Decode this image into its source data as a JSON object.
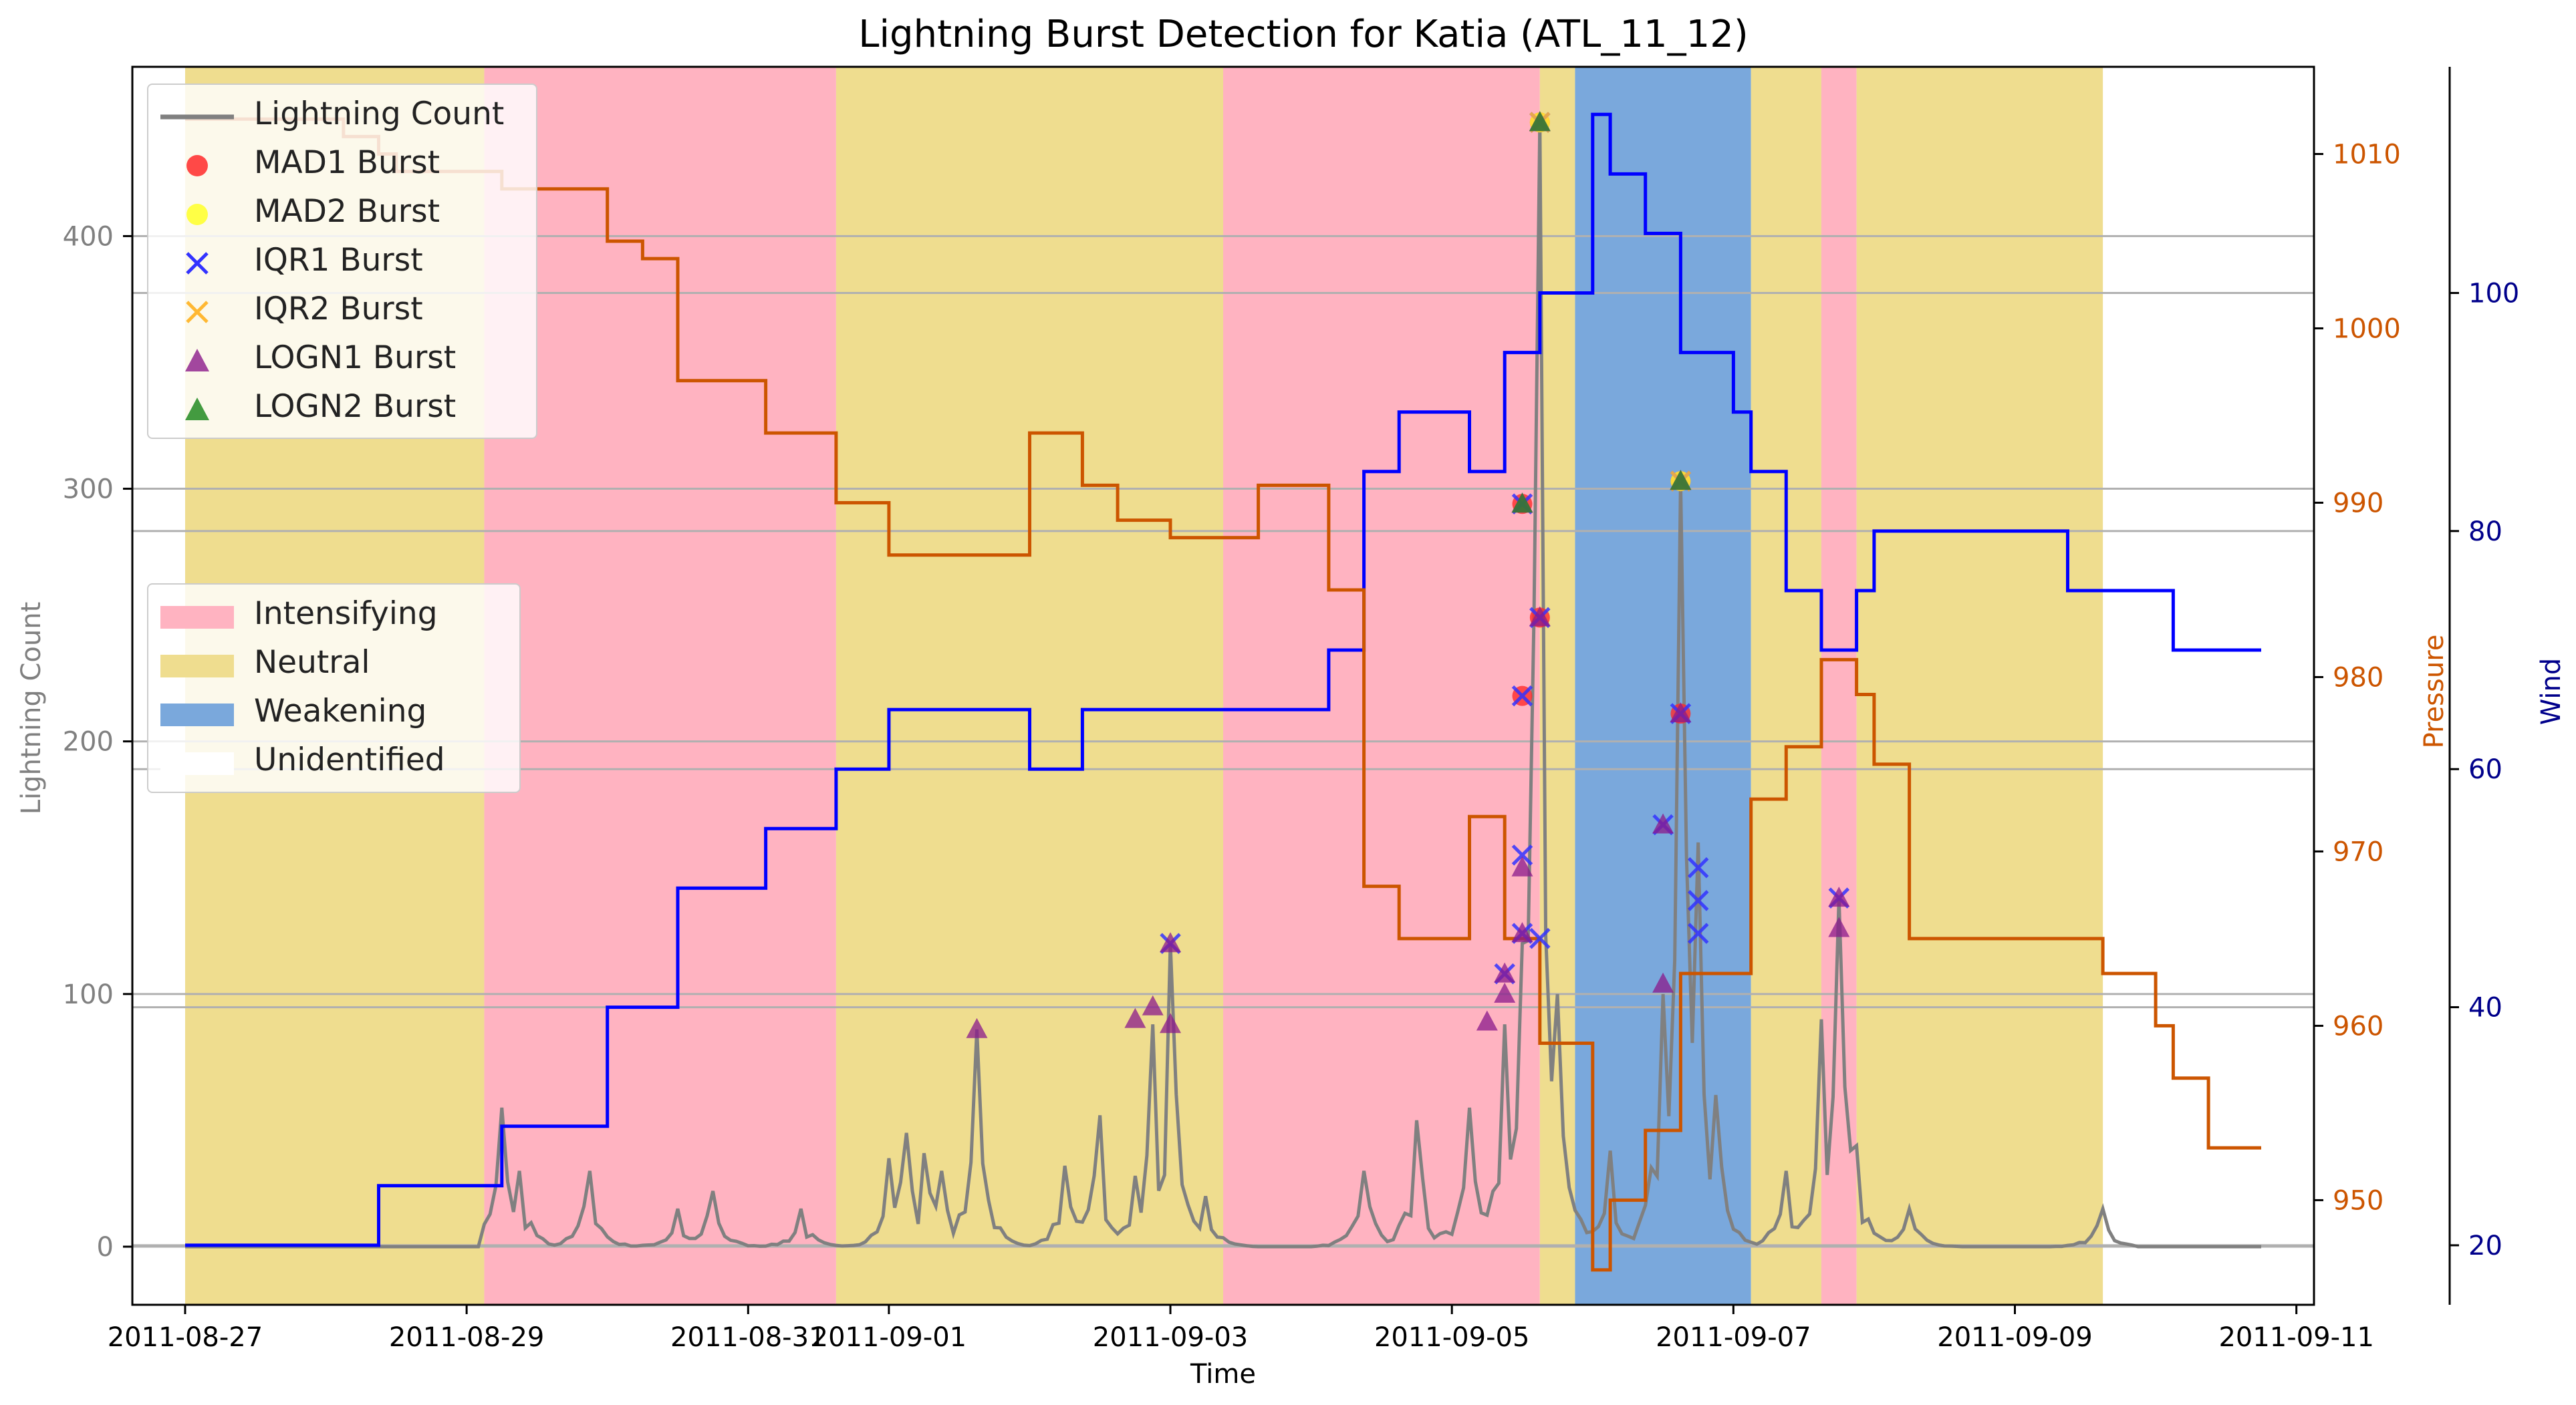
{
  "chart_data": {
    "type": "line",
    "title": "Lightning Burst Detection for Katia (ATL_11_12)",
    "xlabel": "Time",
    "ylabel_left": "Lightning Count",
    "ylabel_pressure": "Pressure",
    "ylabel_wind": "Wind",
    "xlim": [
      "2011-08-26 15:00",
      "2011-09-11 03:00"
    ],
    "ylim_left": [
      -23,
      467
    ],
    "ylim_pressure": [
      944,
      1015
    ],
    "ylim_wind": [
      15,
      119
    ],
    "x_ticks": [
      "2011-08-27",
      "2011-08-29",
      "2011-08-31",
      "2011-09-01",
      "2011-09-03",
      "2011-09-05",
      "2011-09-07",
      "2011-09-09",
      "2011-09-11"
    ],
    "x_tick_times": [
      "2011-08-27 00:00",
      "2011-08-29 00:00",
      "2011-08-31 00:00",
      "2011-09-01 00:00",
      "2011-09-03 00:00",
      "2011-09-05 00:00",
      "2011-09-07 00:00",
      "2011-09-09 00:00",
      "2011-09-11 00:00"
    ],
    "y_ticks_left": [
      0,
      100,
      200,
      300,
      400
    ],
    "y_ticks_pressure": [
      950,
      960,
      970,
      980,
      990,
      1000,
      1010
    ],
    "y_ticks_wind": [
      20,
      40,
      60,
      80,
      100
    ],
    "grid": "horizontal lines only",
    "colors": {
      "lightning": "#808080",
      "pressure": "#cc5500",
      "wind": "#0000ff",
      "wind_axis": "#00008b",
      "intensifying": "#ffb3c1",
      "neutral": "#efdd8f",
      "weakening": "#7aa8dc",
      "mad1": "#ff2a2a",
      "mad2": "#ffff33",
      "iqr1": "#3333ff",
      "iqr2": "#ffb833",
      "logn1": "#8b1a8b",
      "logn2": "#228b22"
    },
    "phases": [
      {
        "label": "Neutral",
        "start": "2011-08-27 00:00",
        "end": "2011-08-29 03:00"
      },
      {
        "label": "Intensifying",
        "start": "2011-08-29 03:00",
        "end": "2011-08-31 15:00"
      },
      {
        "label": "Neutral",
        "start": "2011-08-31 15:00",
        "end": "2011-09-03 09:00"
      },
      {
        "label": "Intensifying",
        "start": "2011-09-03 09:00",
        "end": "2011-09-05 15:00"
      },
      {
        "label": "Neutral",
        "start": "2011-09-05 15:00",
        "end": "2011-09-05 21:00"
      },
      {
        "label": "Weakening",
        "start": "2011-09-05 21:00",
        "end": "2011-09-07 03:00"
      },
      {
        "label": "Neutral",
        "start": "2011-09-07 03:00",
        "end": "2011-09-07 15:00"
      },
      {
        "label": "Intensifying",
        "start": "2011-09-07 15:00",
        "end": "2011-09-07 21:00"
      },
      {
        "label": "Neutral",
        "start": "2011-09-07 21:00",
        "end": "2011-09-09 15:00"
      }
    ],
    "pressure": [
      [
        "2011-08-27 00:00",
        1012
      ],
      [
        "2011-08-28 03:00",
        1012
      ],
      [
        "2011-08-28 03:00",
        1011
      ],
      [
        "2011-08-28 09:00",
        1011
      ],
      [
        "2011-08-28 09:00",
        1010
      ],
      [
        "2011-08-28 12:00",
        1010
      ],
      [
        "2011-08-28 12:00",
        1009
      ],
      [
        "2011-08-29 06:00",
        1009
      ],
      [
        "2011-08-29 06:00",
        1008
      ],
      [
        "2011-08-30 00:00",
        1008
      ],
      [
        "2011-08-30 00:00",
        1005
      ],
      [
        "2011-08-30 06:00",
        1005
      ],
      [
        "2011-08-30 06:00",
        1004
      ],
      [
        "2011-08-30 12:00",
        1004
      ],
      [
        "2011-08-30 12:00",
        997
      ],
      [
        "2011-08-31 03:00",
        997
      ],
      [
        "2011-08-31 03:00",
        994
      ],
      [
        "2011-08-31 15:00",
        994
      ],
      [
        "2011-08-31 15:00",
        990
      ],
      [
        "2011-09-01 00:00",
        990
      ],
      [
        "2011-09-01 00:00",
        987
      ],
      [
        "2011-09-02 00:00",
        987
      ],
      [
        "2011-09-02 00:00",
        994
      ],
      [
        "2011-09-02 09:00",
        994
      ],
      [
        "2011-09-02 09:00",
        991
      ],
      [
        "2011-09-02 15:00",
        991
      ],
      [
        "2011-09-02 15:00",
        989
      ],
      [
        "2011-09-03 00:00",
        989
      ],
      [
        "2011-09-03 00:00",
        988
      ],
      [
        "2011-09-03 15:00",
        988
      ],
      [
        "2011-09-03 15:00",
        991
      ],
      [
        "2011-09-04 03:00",
        991
      ],
      [
        "2011-09-04 03:00",
        985
      ],
      [
        "2011-09-04 09:00",
        985
      ],
      [
        "2011-09-04 09:00",
        968
      ],
      [
        "2011-09-04 15:00",
        968
      ],
      [
        "2011-09-04 15:00",
        965
      ],
      [
        "2011-09-05 03:00",
        965
      ],
      [
        "2011-09-05 03:00",
        972
      ],
      [
        "2011-09-05 09:00",
        972
      ],
      [
        "2011-09-05 09:00",
        965
      ],
      [
        "2011-09-05 15:00",
        965
      ],
      [
        "2011-09-05 15:00",
        959
      ],
      [
        "2011-09-06 00:00",
        959
      ],
      [
        "2011-09-06 00:00",
        946
      ],
      [
        "2011-09-06 03:00",
        946
      ],
      [
        "2011-09-06 03:00",
        950
      ],
      [
        "2011-09-06 09:00",
        950
      ],
      [
        "2011-09-06 09:00",
        954
      ],
      [
        "2011-09-06 15:00",
        954
      ],
      [
        "2011-09-06 15:00",
        963
      ],
      [
        "2011-09-07 03:00",
        963
      ],
      [
        "2011-09-07 03:00",
        973
      ],
      [
        "2011-09-07 09:00",
        973
      ],
      [
        "2011-09-07 09:00",
        976
      ],
      [
        "2011-09-07 15:00",
        976
      ],
      [
        "2011-09-07 15:00",
        981
      ],
      [
        "2011-09-07 21:00",
        981
      ],
      [
        "2011-09-07 21:00",
        979
      ],
      [
        "2011-09-08 00:00",
        979
      ],
      [
        "2011-09-08 00:00",
        975
      ],
      [
        "2011-09-08 06:00",
        975
      ],
      [
        "2011-09-08 06:00",
        965
      ],
      [
        "2011-09-09 15:00",
        965
      ],
      [
        "2011-09-09 15:00",
        963
      ],
      [
        "2011-09-10 00:00",
        963
      ],
      [
        "2011-09-10 00:00",
        960
      ],
      [
        "2011-09-10 03:00",
        960
      ],
      [
        "2011-09-10 03:00",
        957
      ],
      [
        "2011-09-10 09:00",
        957
      ],
      [
        "2011-09-10 09:00",
        953
      ],
      [
        "2011-09-10 18:00",
        953
      ]
    ],
    "wind": [
      [
        "2011-08-27 00:00",
        20
      ],
      [
        "2011-08-28 09:00",
        20
      ],
      [
        "2011-08-28 09:00",
        25
      ],
      [
        "2011-08-29 06:00",
        25
      ],
      [
        "2011-08-29 06:00",
        30
      ],
      [
        "2011-08-30 00:00",
        30
      ],
      [
        "2011-08-30 00:00",
        40
      ],
      [
        "2011-08-30 12:00",
        40
      ],
      [
        "2011-08-30 12:00",
        50
      ],
      [
        "2011-08-31 03:00",
        50
      ],
      [
        "2011-08-31 03:00",
        55
      ],
      [
        "2011-08-31 15:00",
        55
      ],
      [
        "2011-08-31 15:00",
        60
      ],
      [
        "2011-09-01 00:00",
        60
      ],
      [
        "2011-09-01 00:00",
        65
      ],
      [
        "2011-09-02 00:00",
        65
      ],
      [
        "2011-09-02 00:00",
        60
      ],
      [
        "2011-09-02 09:00",
        60
      ],
      [
        "2011-09-02 09:00",
        65
      ],
      [
        "2011-09-04 03:00",
        65
      ],
      [
        "2011-09-04 03:00",
        70
      ],
      [
        "2011-09-04 09:00",
        70
      ],
      [
        "2011-09-04 09:00",
        85
      ],
      [
        "2011-09-04 15:00",
        85
      ],
      [
        "2011-09-04 15:00",
        90
      ],
      [
        "2011-09-05 03:00",
        90
      ],
      [
        "2011-09-05 03:00",
        85
      ],
      [
        "2011-09-05 09:00",
        85
      ],
      [
        "2011-09-05 09:00",
        95
      ],
      [
        "2011-09-05 15:00",
        95
      ],
      [
        "2011-09-05 15:00",
        100
      ],
      [
        "2011-09-06 00:00",
        100
      ],
      [
        "2011-09-06 00:00",
        115
      ],
      [
        "2011-09-06 03:00",
        115
      ],
      [
        "2011-09-06 03:00",
        110
      ],
      [
        "2011-09-06 09:00",
        110
      ],
      [
        "2011-09-06 09:00",
        105
      ],
      [
        "2011-09-06 15:00",
        105
      ],
      [
        "2011-09-06 15:00",
        95
      ],
      [
        "2011-09-07 00:00",
        95
      ],
      [
        "2011-09-07 00:00",
        90
      ],
      [
        "2011-09-07 03:00",
        90
      ],
      [
        "2011-09-07 03:00",
        85
      ],
      [
        "2011-09-07 09:00",
        85
      ],
      [
        "2011-09-07 09:00",
        75
      ],
      [
        "2011-09-07 15:00",
        75
      ],
      [
        "2011-09-07 15:00",
        70
      ],
      [
        "2011-09-07 21:00",
        70
      ],
      [
        "2011-09-07 21:00",
        75
      ],
      [
        "2011-09-08 00:00",
        75
      ],
      [
        "2011-09-08 00:00",
        80
      ],
      [
        "2011-09-09 09:00",
        80
      ],
      [
        "2011-09-09 09:00",
        75
      ],
      [
        "2011-09-10 03:00",
        75
      ],
      [
        "2011-09-10 03:00",
        70
      ],
      [
        "2011-09-10 18:00",
        70
      ]
    ],
    "lightning_peaks": [
      [
        "2011-08-29 06:00",
        55
      ],
      [
        "2011-08-29 09:00",
        30
      ],
      [
        "2011-08-29 21:00",
        30
      ],
      [
        "2011-08-30 12:00",
        15
      ],
      [
        "2011-08-30 18:00",
        22
      ],
      [
        "2011-08-31 09:00",
        15
      ],
      [
        "2011-09-01 00:00",
        35
      ],
      [
        "2011-09-01 03:00",
        45
      ],
      [
        "2011-09-01 06:00",
        37
      ],
      [
        "2011-09-01 09:00",
        30
      ],
      [
        "2011-09-01 15:00",
        86
      ],
      [
        "2011-09-02 06:00",
        32
      ],
      [
        "2011-09-02 12:00",
        52
      ],
      [
        "2011-09-02 18:00",
        28
      ],
      [
        "2011-09-03 00:00",
        120
      ],
      [
        "2011-09-02 21:00",
        88
      ],
      [
        "2011-09-03 06:00",
        20
      ],
      [
        "2011-09-04 09:00",
        30
      ],
      [
        "2011-09-04 18:00",
        50
      ],
      [
        "2011-09-05 03:00",
        55
      ],
      [
        "2011-09-05 09:00",
        88
      ],
      [
        "2011-09-05 12:00",
        120
      ],
      [
        "2011-09-05 15:00",
        445
      ],
      [
        "2011-09-05 18:00",
        100
      ],
      [
        "2011-09-06 03:00",
        38
      ],
      [
        "2011-09-06 12:00",
        100
      ],
      [
        "2011-09-06 15:00",
        303
      ],
      [
        "2011-09-06 18:00",
        160
      ],
      [
        "2011-09-06 21:00",
        60
      ],
      [
        "2011-09-07 09:00",
        30
      ],
      [
        "2011-09-07 15:00",
        90
      ],
      [
        "2011-09-07 18:00",
        138
      ],
      [
        "2011-09-07 21:00",
        40
      ],
      [
        "2011-09-08 06:00",
        15
      ],
      [
        "2011-09-09 15:00",
        15
      ]
    ],
    "bursts": {
      "MAD1 Burst": [
        [
          "2011-09-05 15:00",
          445
        ],
        [
          "2011-09-05 12:00",
          294
        ],
        [
          "2011-09-05 15:00",
          249
        ],
        [
          "2011-09-05 12:00",
          218
        ],
        [
          "2011-09-06 15:00",
          303
        ],
        [
          "2011-09-06 15:00",
          211
        ]
      ],
      "MAD2 Burst": [
        [
          "2011-09-05 15:00",
          445
        ],
        [
          "2011-09-06 15:00",
          303
        ]
      ],
      "IQR1 Burst": [
        [
          "2011-09-05 15:00",
          445
        ],
        [
          "2011-09-05 12:00",
          294
        ],
        [
          "2011-09-05 15:00",
          249
        ],
        [
          "2011-09-05 12:00",
          218
        ],
        [
          "2011-09-05 12:00",
          155
        ],
        [
          "2011-09-05 12:00",
          124
        ],
        [
          "2011-09-05 15:00",
          122
        ],
        [
          "2011-09-05 09:00",
          108
        ],
        [
          "2011-09-03 00:00",
          120
        ],
        [
          "2011-09-06 15:00",
          303
        ],
        [
          "2011-09-06 15:00",
          211
        ],
        [
          "2011-09-06 12:00",
          167
        ],
        [
          "2011-09-06 18:00",
          150
        ],
        [
          "2011-09-06 18:00",
          137
        ],
        [
          "2011-09-06 18:00",
          124
        ],
        [
          "2011-09-07 18:00",
          138
        ]
      ],
      "IQR2 Burst": [
        [
          "2011-09-05 15:00",
          445
        ],
        [
          "2011-09-06 15:00",
          303
        ]
      ],
      "LOGN1 Burst": [
        [
          "2011-09-01 15:00",
          86
        ],
        [
          "2011-09-02 18:00",
          90
        ],
        [
          "2011-09-02 21:00",
          95
        ],
        [
          "2011-09-03 00:00",
          120
        ],
        [
          "2011-09-03 00:00",
          88
        ],
        [
          "2011-09-05 06:00",
          89
        ],
        [
          "2011-09-05 09:00",
          108
        ],
        [
          "2011-09-05 09:00",
          100
        ],
        [
          "2011-09-05 12:00",
          124
        ],
        [
          "2011-09-05 12:00",
          150
        ],
        [
          "2011-09-05 15:00",
          445
        ],
        [
          "2011-09-05 12:00",
          294
        ],
        [
          "2011-09-05 15:00",
          249
        ],
        [
          "2011-09-06 12:00",
          104
        ],
        [
          "2011-09-06 12:00",
          167
        ],
        [
          "2011-09-06 15:00",
          303
        ],
        [
          "2011-09-06 15:00",
          211
        ],
        [
          "2011-09-07 18:00",
          138
        ],
        [
          "2011-09-07 18:00",
          126
        ]
      ],
      "LOGN2 Burst": [
        [
          "2011-09-05 15:00",
          445
        ],
        [
          "2011-09-05 12:00",
          294
        ],
        [
          "2011-09-06 15:00",
          303
        ]
      ]
    }
  },
  "legend_top": {
    "items": [
      "Lightning Count",
      "MAD1 Burst",
      "MAD2 Burst",
      "IQR1 Burst",
      "IQR2 Burst",
      "LOGN1 Burst",
      "LOGN2 Burst"
    ]
  },
  "legend_phase": {
    "items": [
      "Intensifying",
      "Neutral",
      "Weakening",
      "Unidentified"
    ]
  }
}
